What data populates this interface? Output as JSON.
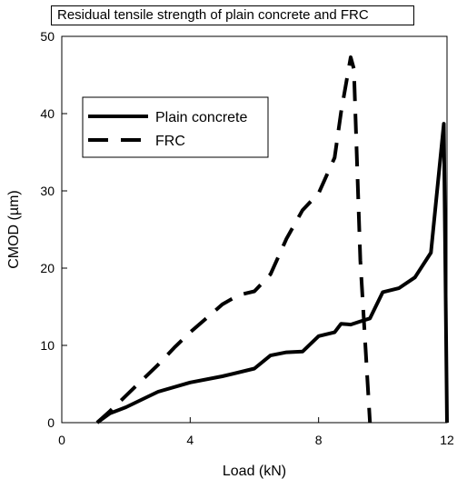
{
  "chart_data": {
    "type": "line",
    "title": "Residual tensile strength of plain concrete and FRC",
    "xlabel": "Load (kN)",
    "ylabel": "CMOD (µm)",
    "xlim": [
      0,
      12
    ],
    "ylim": [
      0,
      50
    ],
    "xticks": [
      0,
      4,
      8,
      12
    ],
    "yticks": [
      0,
      10,
      20,
      30,
      40,
      50
    ],
    "grid": false,
    "legend_position": "top-left",
    "series": [
      {
        "name": "Plain concrete",
        "style": "solid",
        "color": "#000000",
        "x": [
          1.1,
          1.5,
          2.0,
          2.5,
          3.0,
          4.0,
          5.0,
          6.0,
          6.5,
          7.0,
          7.5,
          8.0,
          8.5,
          8.7,
          9.0,
          9.3,
          9.6,
          10.0,
          10.5,
          11.0,
          11.5,
          11.9,
          12.0
        ],
        "y": [
          0.0,
          1.2,
          2.0,
          3.0,
          4.0,
          5.2,
          6.0,
          7.0,
          8.7,
          9.1,
          9.2,
          11.2,
          11.7,
          12.8,
          12.7,
          13.1,
          13.5,
          16.9,
          17.4,
          18.8,
          22.0,
          38.7,
          0.0
        ]
      },
      {
        "name": "FRC",
        "style": "dashed",
        "color": "#000000",
        "x": [
          1.1,
          1.5,
          2.0,
          2.5,
          3.0,
          3.5,
          4.0,
          4.5,
          5.0,
          5.5,
          6.0,
          6.5,
          7.0,
          7.5,
          8.0,
          8.5,
          8.7,
          9.0,
          9.1,
          9.3,
          9.6
        ],
        "y": [
          0.0,
          1.5,
          3.5,
          5.5,
          7.5,
          9.7,
          11.7,
          13.5,
          15.3,
          16.5,
          17.0,
          19.2,
          23.8,
          27.5,
          29.7,
          34.3,
          40.2,
          47.3,
          45.8,
          21.0,
          0.0
        ]
      }
    ]
  }
}
